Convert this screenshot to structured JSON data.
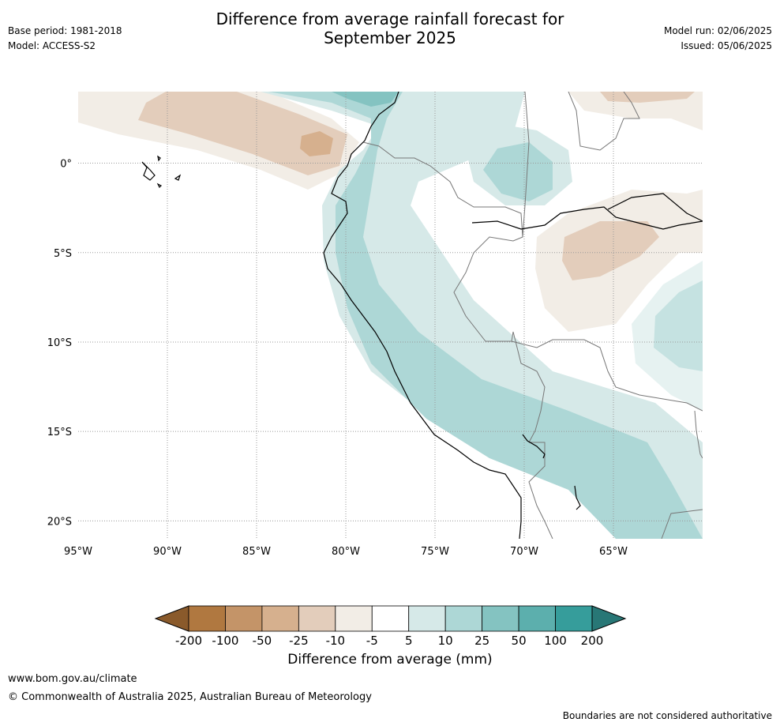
{
  "title_line1": "Difference from average rainfall forecast for",
  "title_line2": "September 2025",
  "meta": {
    "base_period": "Base period: 1981-2018",
    "model": "Model: ACCESS-S2",
    "model_run": "Model run: 02/06/2025",
    "issued": "Issued: 05/06/2025"
  },
  "axes": {
    "lat_labels": [
      "0°",
      "5°S",
      "10°S",
      "15°S",
      "20°S"
    ],
    "lat_values": [
      0,
      -5,
      -10,
      -15,
      -20
    ],
    "lon_labels": [
      "95°W",
      "90°W",
      "85°W",
      "80°W",
      "75°W",
      "70°W",
      "65°W"
    ],
    "lon_values": [
      -95,
      -90,
      -85,
      -80,
      -75,
      -70,
      -65
    ],
    "lon_range": [
      -95,
      -60
    ],
    "lat_range": [
      -21,
      4
    ]
  },
  "colorbar": {
    "label": "Difference from average (mm)",
    "ticks": [
      "-200",
      "-100",
      "-50",
      "-25",
      "-10",
      "-5",
      "5",
      "10",
      "25",
      "50",
      "100",
      "200"
    ],
    "colors": [
      "#8a5a2b",
      "#b07840",
      "#c49468",
      "#d6b08e",
      "#e3cdbb",
      "#f2ede6",
      "#ffffff",
      "#d6e9e8",
      "#add7d6",
      "#84c3c1",
      "#5cafad",
      "#369d9b",
      "#287776"
    ]
  },
  "footer": {
    "url": "www.bom.gov.au/climate",
    "copyright": "© Commonwealth of Australia 2025, Australian Bureau of Meteorology",
    "disclaimer": "Boundaries are not considered authoritative"
  }
}
